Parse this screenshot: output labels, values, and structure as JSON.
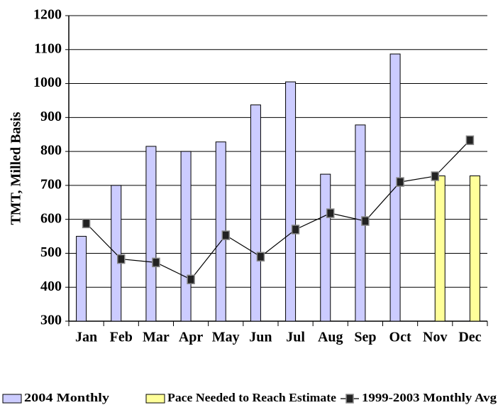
{
  "chart_data": {
    "type": "bar",
    "y_axis_label": "TMT, Milled Basis",
    "categories": [
      "Jan",
      "Feb",
      "Mar",
      "Apr",
      "May",
      "Jun",
      "Jul",
      "Aug",
      "Sep",
      "Oct",
      "Nov",
      "Dec"
    ],
    "series": [
      {
        "name": "2004 Monthly",
        "type": "bar",
        "color": "#ccccff",
        "values": [
          550,
          700,
          815,
          800,
          828,
          937,
          1005,
          733,
          878,
          1087,
          null,
          null
        ]
      },
      {
        "name": "Pace Needed to Reach Estimate",
        "type": "bar",
        "color": "#ffff99",
        "values": [
          null,
          null,
          null,
          null,
          null,
          null,
          null,
          null,
          null,
          null,
          728,
          728
        ]
      },
      {
        "name": "1999-2003 Monthly Avg",
        "type": "line",
        "color": "#000000",
        "values": [
          588,
          483,
          473,
          423,
          553,
          490,
          570,
          618,
          595,
          710,
          727,
          833
        ]
      }
    ],
    "ylim": [
      300,
      1200
    ],
    "yticks": [
      300,
      400,
      500,
      600,
      700,
      800,
      900,
      1000,
      1100,
      1200
    ],
    "grid": true,
    "legend_position": "bottom"
  }
}
